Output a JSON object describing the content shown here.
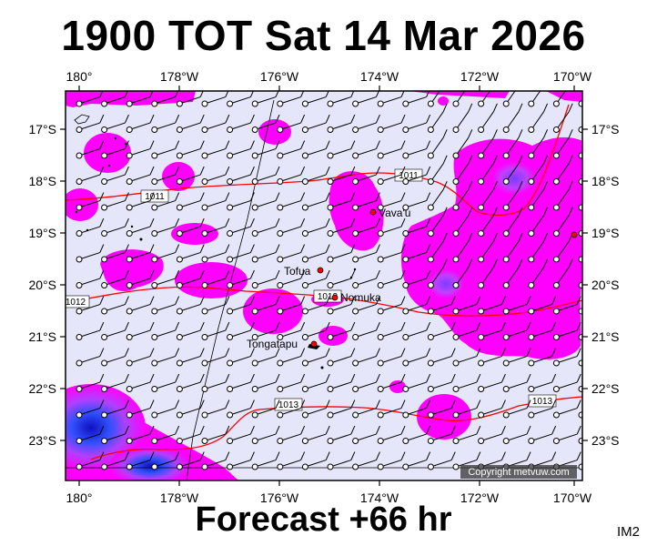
{
  "title": "1900 TOT Sat 14 Mar 2026",
  "footer": "Forecast +66 hr",
  "code": "IM2",
  "copyright": "Copyright metvuw.com",
  "lon_labels": [
    "180°",
    "178°W",
    "176°W",
    "174°W",
    "172°W",
    "170°W"
  ],
  "lat_labels": [
    "17°S",
    "18°S",
    "19°S",
    "20°S",
    "21°S",
    "22°S",
    "23°S"
  ],
  "places": {
    "vavau": "Vava'u",
    "tofua": "Tofua",
    "nomuka": "Nomuka",
    "tongatapu": "Tongatapu"
  },
  "isobars": {
    "a": "1011",
    "b": "1011",
    "c": "1012",
    "d": "1012",
    "e": "1013",
    "f": "1013"
  },
  "colors": {
    "background": "#e6e6fa",
    "rain_light": "#ff00ff",
    "rain_mid": "#b040ff",
    "rain_heavy": "#2020e0",
    "isobar": "#ff0000"
  }
}
